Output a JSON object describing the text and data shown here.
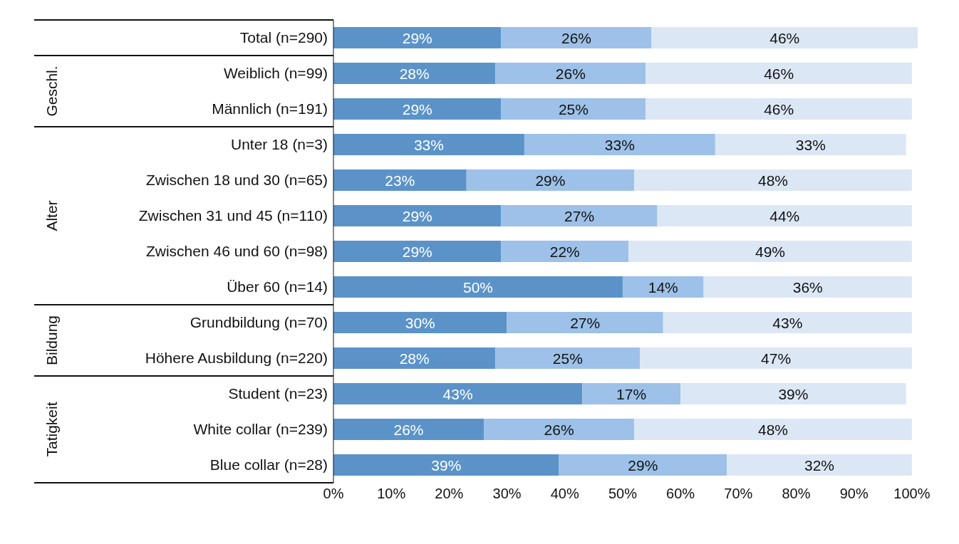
{
  "chart_data": {
    "type": "bar",
    "orientation": "horizontal",
    "stacked": true,
    "categories": [
      "Total (n=290)",
      "Weiblich (n=99)",
      "Männlich (n=191)",
      "Unter 18 (n=3)",
      "Zwischen 18 und 30 (n=65)",
      "Zwischen 31 und 45 (n=110)",
      "Zwischen 46 und 60 (n=98)",
      "Über 60 (n=14)",
      "Grundbildung (n=70)",
      "Höhere Ausbildung (n=220)",
      "Student (n=23)",
      "White collar (n=239)",
      "Blue collar (n=28)"
    ],
    "series": [
      {
        "color": "#5b93c9",
        "values": [
          29,
          28,
          29,
          33,
          23,
          29,
          29,
          50,
          30,
          28,
          43,
          26,
          39
        ],
        "value_labels": [
          "29%",
          "28%",
          "29%",
          "33%",
          "23%",
          "29%",
          "29%",
          "50%",
          "30%",
          "28%",
          "43%",
          "26%",
          "39%"
        ]
      },
      {
        "color": "#9dc1e8",
        "values": [
          26,
          26,
          25,
          33,
          29,
          27,
          22,
          14,
          27,
          25,
          17,
          26,
          29
        ],
        "value_labels": [
          "26%",
          "26%",
          "25%",
          "33%",
          "29%",
          "27%",
          "22%",
          "14%",
          "27%",
          "25%",
          "17%",
          "26%",
          "29%"
        ]
      },
      {
        "color": "#dce7f5",
        "values": [
          46,
          46,
          46,
          33,
          48,
          44,
          49,
          36,
          43,
          47,
          39,
          48,
          32
        ],
        "value_labels": [
          "46%",
          "46%",
          "46%",
          "33%",
          "48%",
          "44%",
          "49%",
          "36%",
          "43%",
          "47%",
          "39%",
          "48%",
          "32%"
        ]
      }
    ],
    "xlim": [
      0,
      101
    ],
    "xticks": [
      {
        "value": 0,
        "label": "0%"
      },
      {
        "value": 10,
        "label": "10%"
      },
      {
        "value": 20,
        "label": "20%"
      },
      {
        "value": 30,
        "label": "30%"
      },
      {
        "value": 40,
        "label": "40%"
      },
      {
        "value": 50,
        "label": "50%"
      },
      {
        "value": 60,
        "label": "60%"
      },
      {
        "value": 70,
        "label": "70%"
      },
      {
        "value": 80,
        "label": "80%"
      },
      {
        "value": 90,
        "label": "90%"
      },
      {
        "value": 100,
        "label": "100%"
      }
    ],
    "annotations": [
      "Geschl.",
      "Alter",
      "Bildung",
      "Tatigkeit"
    ]
  }
}
